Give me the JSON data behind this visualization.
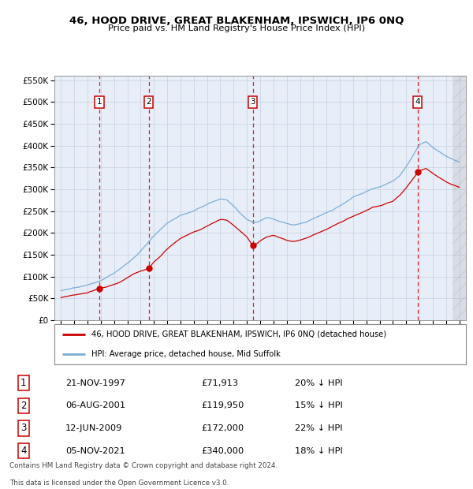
{
  "title": "46, HOOD DRIVE, GREAT BLAKENHAM, IPSWICH, IP6 0NQ",
  "subtitle": "Price paid vs. HM Land Registry's House Price Index (HPI)",
  "legend_line1": "46, HOOD DRIVE, GREAT BLAKENHAM, IPSWICH, IP6 0NQ (detached house)",
  "legend_line2": "HPI: Average price, detached house, Mid Suffolk",
  "transactions": [
    {
      "num": 1,
      "date_label": "21-NOV-1997",
      "price_label": "£71,913",
      "hpi_label": "20% ↓ HPI",
      "year": 1997.89,
      "price": 71913
    },
    {
      "num": 2,
      "date_label": "06-AUG-2001",
      "price_label": "£119,950",
      "hpi_label": "15% ↓ HPI",
      "year": 2001.6,
      "price": 119950
    },
    {
      "num": 3,
      "date_label": "12-JUN-2009",
      "price_label": "£172,000",
      "hpi_label": "22% ↓ HPI",
      "year": 2009.45,
      "price": 172000
    },
    {
      "num": 4,
      "date_label": "05-NOV-2021",
      "price_label": "£340,000",
      "hpi_label": "18% ↓ HPI",
      "year": 2021.85,
      "price": 340000
    }
  ],
  "footer_line1": "Contains HM Land Registry data © Crown copyright and database right 2024.",
  "footer_line2": "This data is licensed under the Open Government Licence v3.0.",
  "ylim": [
    0,
    560000
  ],
  "xlim": [
    1994.5,
    2025.5
  ],
  "bg_color": "#e8eef8",
  "plot_bg": "#ffffff",
  "red_color": "#cc0000",
  "blue_color": "#7aaed6"
}
